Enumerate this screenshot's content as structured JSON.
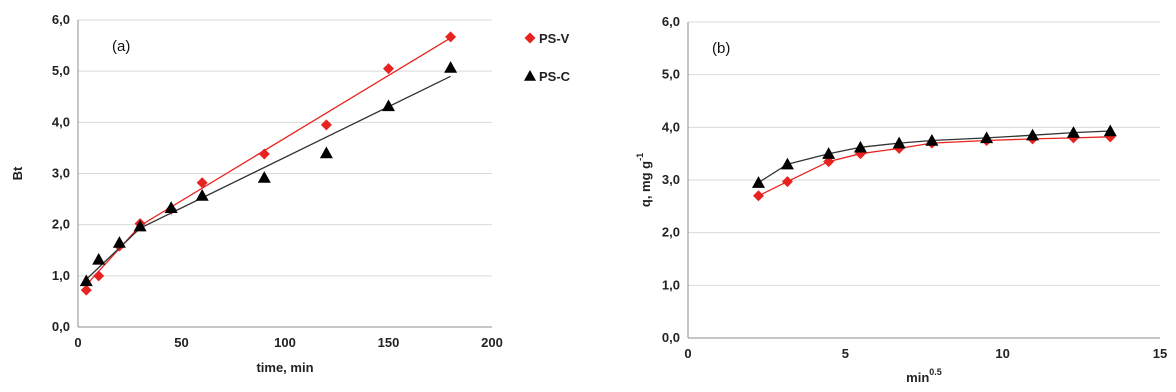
{
  "colors": {
    "ps_v": "#e8231f",
    "ps_v_line": "#e8231f",
    "ps_c": "#000000",
    "ps_c_line": "#333333",
    "grid": "#d9d9d9",
    "axis": "#8c8c8c"
  },
  "legend": {
    "entries": [
      {
        "label": "PS-V",
        "marker": "diamond",
        "color": "#e8231f"
      },
      {
        "label": "PS-C",
        "marker": "triangle",
        "color": "#000000"
      }
    ]
  },
  "chart_data": [
    {
      "type": "scatter",
      "panel_label": "(a)",
      "title": "",
      "xlabel": "time, min",
      "ylabel": "Bt",
      "xlim": [
        0,
        200
      ],
      "ylim": [
        0,
        6
      ],
      "x_ticks": [
        "0",
        "50",
        "100",
        "150",
        "200"
      ],
      "y_ticks": [
        "0,0",
        "1,0",
        "2,0",
        "3,0",
        "4,0",
        "5,0",
        "6,0"
      ],
      "grid": "horizontal",
      "series": [
        {
          "name": "PS-V",
          "marker": "diamond",
          "points": [
            [
              4,
              0.72
            ],
            [
              10,
              1.0
            ],
            [
              20,
              1.58
            ],
            [
              30,
              2.02
            ],
            [
              45,
              2.3
            ],
            [
              60,
              2.82
            ],
            [
              90,
              3.38
            ],
            [
              120,
              3.95
            ],
            [
              150,
              5.05
            ],
            [
              180,
              5.67
            ]
          ],
          "fit": [
            [
              4,
              0.82
            ],
            [
              30,
              1.98
            ],
            [
              180,
              5.65
            ]
          ]
        },
        {
          "name": "PS-C",
          "marker": "triangle",
          "points": [
            [
              4,
              0.9
            ],
            [
              10,
              1.32
            ],
            [
              20,
              1.65
            ],
            [
              30,
              1.97
            ],
            [
              45,
              2.33
            ],
            [
              60,
              2.57
            ],
            [
              90,
              2.92
            ],
            [
              120,
              3.4
            ],
            [
              150,
              4.32
            ],
            [
              180,
              5.07
            ]
          ],
          "fit": [
            [
              4,
              0.93
            ],
            [
              30,
              1.93
            ],
            [
              180,
              4.9
            ]
          ]
        }
      ]
    },
    {
      "type": "line",
      "panel_label": "(b)",
      "title": "",
      "xlabel": "min",
      "xlabel_sup": "0.5",
      "ylabel": "q, mg g",
      "ylabel_sup": "-1",
      "xlim": [
        0,
        15
      ],
      "ylim": [
        0,
        6
      ],
      "x_ticks": [
        "0",
        "5",
        "10",
        "15"
      ],
      "y_ticks": [
        "0,0",
        "1,0",
        "2,0",
        "3,0",
        "4,0",
        "5,0",
        "6,0"
      ],
      "grid": "horizontal",
      "series": [
        {
          "name": "PS-V",
          "marker": "diamond",
          "points": [
            [
              2.24,
              2.7
            ],
            [
              3.16,
              2.97
            ],
            [
              4.47,
              3.35
            ],
            [
              5.48,
              3.5
            ],
            [
              6.71,
              3.6
            ],
            [
              7.75,
              3.7
            ],
            [
              9.49,
              3.75
            ],
            [
              10.95,
              3.78
            ],
            [
              12.25,
              3.8
            ],
            [
              13.42,
              3.82
            ]
          ]
        },
        {
          "name": "PS-C",
          "marker": "triangle",
          "points": [
            [
              2.24,
              2.95
            ],
            [
              3.16,
              3.3
            ],
            [
              4.47,
              3.5
            ],
            [
              5.48,
              3.62
            ],
            [
              6.71,
              3.7
            ],
            [
              7.75,
              3.75
            ],
            [
              9.49,
              3.8
            ],
            [
              10.95,
              3.85
            ],
            [
              12.25,
              3.9
            ],
            [
              13.42,
              3.93
            ]
          ]
        }
      ]
    }
  ]
}
